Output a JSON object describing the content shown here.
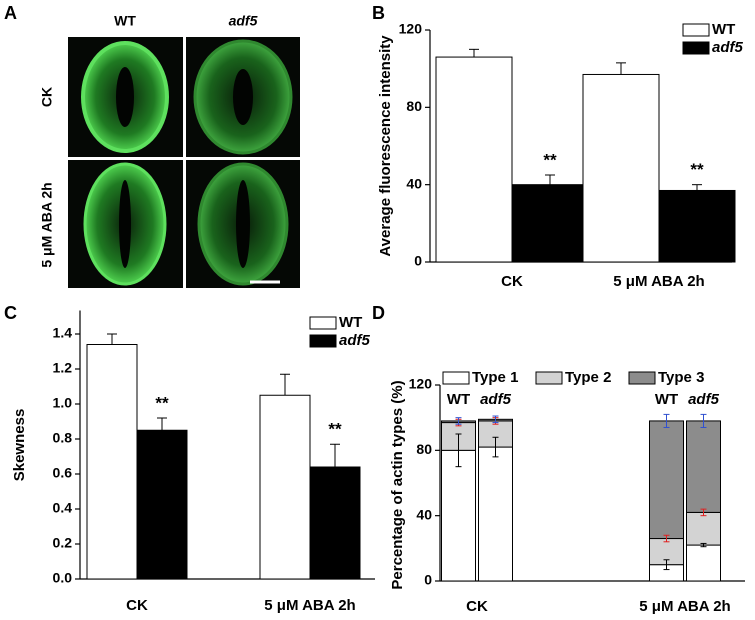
{
  "panel_a": {
    "label": "A",
    "columns": [
      "WT",
      "adf5"
    ],
    "rows": [
      "CK",
      "5 μM ABA 2h"
    ]
  },
  "chart_data": [
    {
      "type": "bar",
      "label": "B",
      "y_label": "Average fluorescence intensity",
      "categories": [
        "CK",
        "5 μM ABA 2h"
      ],
      "series": [
        {
          "name": "WT",
          "color": "#ffffff",
          "values": [
            106,
            97
          ],
          "errors": [
            4,
            6
          ]
        },
        {
          "name": "adf5",
          "color": "#000000",
          "values": [
            40,
            37
          ],
          "errors": [
            5,
            3
          ],
          "significance": [
            "**",
            "**"
          ]
        }
      ],
      "ylim": [
        0,
        120
      ],
      "yticks": [
        0,
        40,
        80,
        120
      ]
    },
    {
      "type": "bar",
      "label": "C",
      "y_label": "Skewness",
      "categories": [
        "CK",
        "5 μM ABA 2h"
      ],
      "series": [
        {
          "name": "WT",
          "color": "#ffffff",
          "values": [
            1.34,
            1.05
          ],
          "errors": [
            0.06,
            0.12
          ]
        },
        {
          "name": "adf5",
          "color": "#000000",
          "values": [
            0.85,
            0.64
          ],
          "errors": [
            0.07,
            0.13
          ],
          "significance": [
            "**",
            "**"
          ]
        }
      ],
      "ylim": [
        0,
        1.5
      ],
      "yticks": [
        {
          "value": 0,
          "label": "0.0"
        },
        0.2,
        0.4,
        0.6,
        0.8,
        {
          "value": 1,
          "label": "1.0"
        },
        1.2,
        1.4
      ]
    },
    {
      "type": "stacked_bar",
      "label": "D",
      "y_label": "Percentage of actin types (%)",
      "categories": [
        "CK",
        "5 μM ABA 2h"
      ],
      "bar_labels": [
        "WT",
        "adf5"
      ],
      "series": [
        {
          "name": "Type 1",
          "color": "#ffffff",
          "error_color": "#000000",
          "values": [
            [
              80,
              82
            ],
            [
              10,
              22
            ]
          ],
          "errors": [
            [
              10,
              6
            ],
            [
              3,
              1
            ]
          ]
        },
        {
          "name": "Type 2",
          "color": "#d3d3d3",
          "error_color": "#e02020",
          "values": [
            [
              17,
              16
            ],
            [
              16,
              20
            ]
          ],
          "errors": [
            [
              2,
              2
            ],
            [
              2,
              2
            ]
          ]
        },
        {
          "name": "Type 3",
          "color": "#8c8c8c",
          "error_color": "#3050d0",
          "values": [
            [
              1,
              1
            ],
            [
              72,
              56
            ]
          ],
          "errors": [
            [
              2,
              2
            ],
            [
              4,
              4
            ]
          ]
        }
      ],
      "ylim": [
        0,
        120
      ],
      "yticks": [
        0,
        40,
        80,
        120
      ]
    }
  ]
}
